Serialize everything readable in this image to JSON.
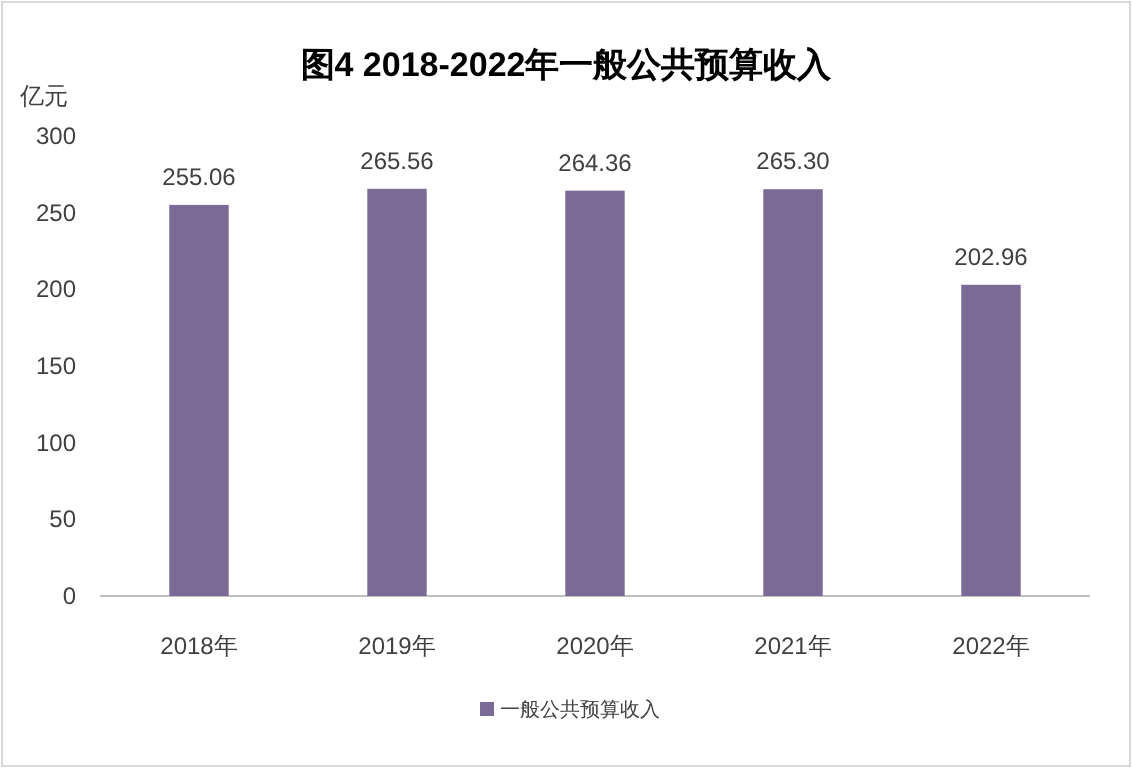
{
  "chart_data": {
    "type": "bar",
    "title": "图4 2018-2022年一般公共预算收入",
    "ylabel": "亿元",
    "categories": [
      "2018年",
      "2019年",
      "2020年",
      "2021年",
      "2022年"
    ],
    "series": [
      {
        "name": "一般公共预算收入",
        "color": "#7b6a96",
        "values": [
          255.06,
          265.56,
          264.36,
          265.3,
          202.96
        ],
        "value_labels": [
          "255.06",
          "265.56",
          "264.36",
          "265.30",
          "202.96"
        ]
      }
    ],
    "ylim": [
      0,
      300
    ],
    "yticks": [
      0,
      50,
      100,
      150,
      200,
      250,
      300
    ],
    "grid": false,
    "legend": "bottom"
  }
}
